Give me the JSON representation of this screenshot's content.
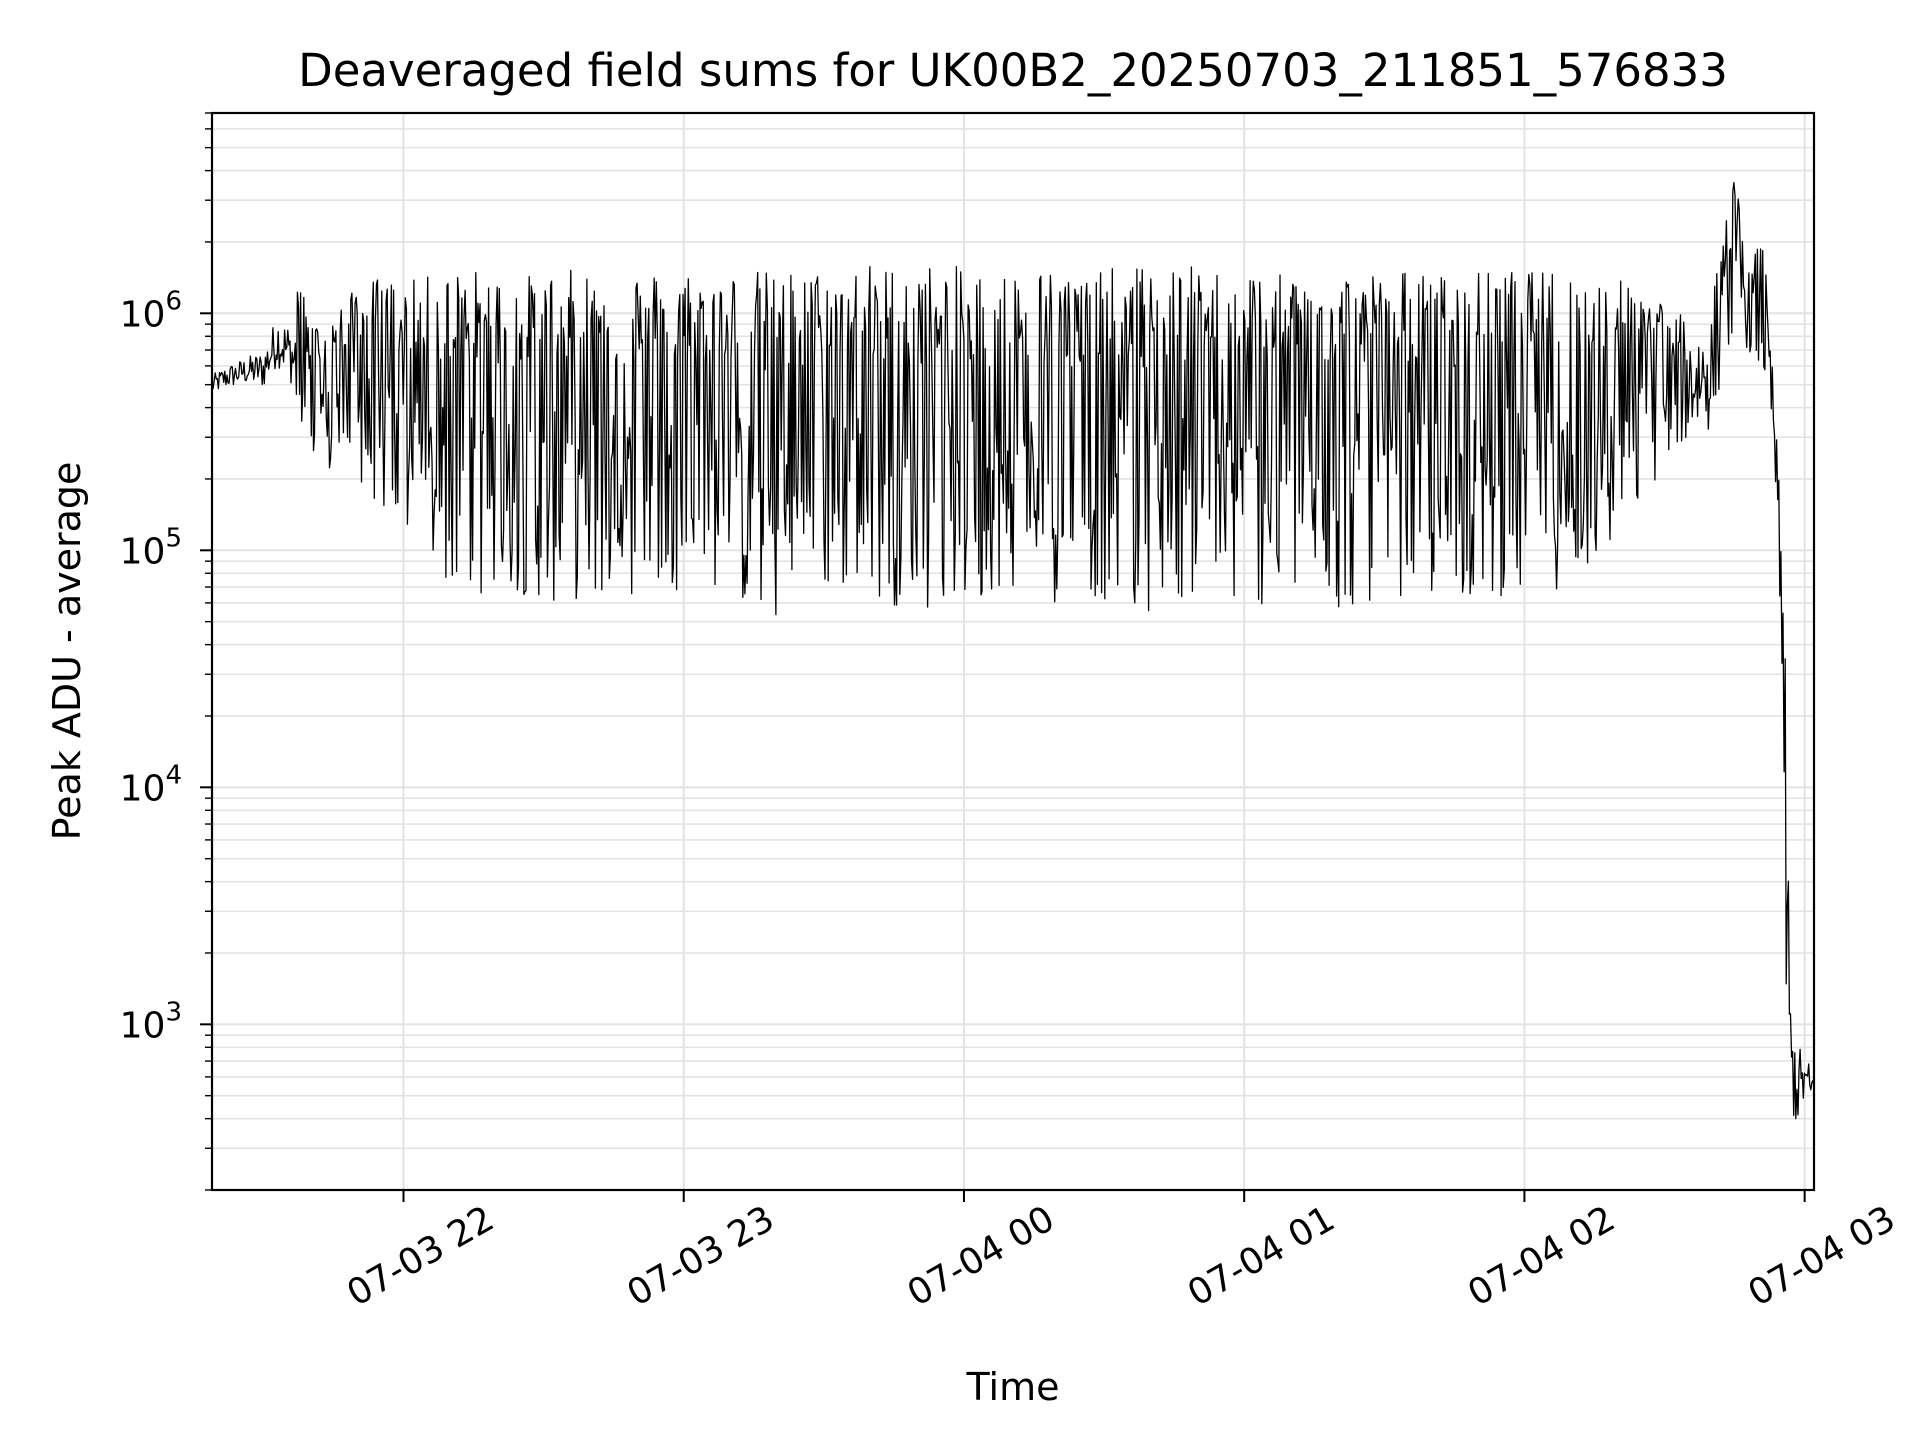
{
  "chart_data": {
    "type": "line",
    "title": "Deaveraged field sums for UK00B2_20250703_211851_576833",
    "xlabel": "Time",
    "ylabel": "Peak ADU - average",
    "yscale": "log",
    "grid": true,
    "x_ticks": [
      "2025-07-03 22:00",
      "2025-07-03 23:00",
      "2025-07-04 00:00",
      "2025-07-04 01:00",
      "2025-07-04 02:00",
      "2025-07-04 03:00"
    ],
    "x_tick_labels": [
      "07-03 22",
      "07-03 23",
      "07-04 00",
      "07-04 01",
      "07-04 02",
      "07-04 03"
    ],
    "y_ticks": [
      1000,
      10000,
      100000,
      1000000
    ],
    "y_tick_labels": [
      {
        "base": "10",
        "exp": "3"
      },
      {
        "base": "10",
        "exp": "4"
      },
      {
        "base": "10",
        "exp": "5"
      },
      {
        "base": "10",
        "exp": "6"
      }
    ],
    "xlim": [
      "2025-07-03 21:19",
      "2025-07-04 03:02"
    ],
    "ylim": [
      200,
      7000000
    ],
    "line_color": "#000000",
    "series": [
      {
        "x": [
          "2025-07-03 21:19",
          "2025-07-03 21:22",
          "2025-07-03 21:26",
          "2025-07-03 21:30",
          "2025-07-03 21:33",
          "2025-07-03 21:36",
          "2025-07-03 21:38",
          "2025-07-03 21:40",
          "2025-07-03 21:42",
          "2025-07-03 21:44",
          "2025-07-03 21:47",
          "2025-07-03 21:50",
          "2025-07-03 21:53",
          "2025-07-03 21:56",
          "2025-07-03 21:59",
          "2025-07-03 22:03",
          "2025-07-03 22:08",
          "2025-07-03 22:14",
          "2025-07-03 22:20",
          "2025-07-03 22:26",
          "2025-07-03 22:32",
          "2025-07-03 22:38",
          "2025-07-03 22:44",
          "2025-07-03 22:50",
          "2025-07-03 22:56",
          "2025-07-03 23:02",
          "2025-07-03 23:08",
          "2025-07-03 23:14",
          "2025-07-03 23:20",
          "2025-07-03 23:26",
          "2025-07-03 23:32",
          "2025-07-03 23:38",
          "2025-07-03 23:44",
          "2025-07-03 23:50",
          "2025-07-03 23:56",
          "2025-07-04 00:02",
          "2025-07-04 00:08",
          "2025-07-04 00:14",
          "2025-07-04 00:20",
          "2025-07-04 00:26",
          "2025-07-04 00:32",
          "2025-07-04 00:38",
          "2025-07-04 00:44",
          "2025-07-04 00:50",
          "2025-07-04 00:56",
          "2025-07-04 01:02",
          "2025-07-04 01:08",
          "2025-07-04 01:14",
          "2025-07-04 01:20",
          "2025-07-04 01:26",
          "2025-07-04 01:32",
          "2025-07-04 01:38",
          "2025-07-04 01:44",
          "2025-07-04 01:50",
          "2025-07-04 01:56",
          "2025-07-04 02:02",
          "2025-07-04 02:08",
          "2025-07-04 02:14",
          "2025-07-04 02:20",
          "2025-07-04 02:26",
          "2025-07-04 02:32",
          "2025-07-04 02:36",
          "2025-07-04 02:40",
          "2025-07-04 02:43",
          "2025-07-04 02:45",
          "2025-07-04 02:48",
          "2025-07-04 02:51",
          "2025-07-04 02:53",
          "2025-07-04 02:54",
          "2025-07-04 02:55",
          "2025-07-04 02:56",
          "2025-07-04 02:57",
          "2025-07-04 02:58",
          "2025-07-04 02:59",
          "2025-07-04 03:00",
          "2025-07-04 03:01",
          "2025-07-04 03:02"
        ],
        "high": [
          550000,
          600000,
          650000,
          700000,
          1000000,
          900000,
          1500000,
          950000,
          900000,
          1000000,
          1100000,
          1300000,
          1400000,
          1450000,
          1350000,
          1400000,
          1500000,
          1550000,
          1500000,
          1450000,
          1500000,
          1550000,
          1500000,
          1550000,
          1500000,
          1550000,
          1500000,
          1550000,
          1500000,
          1550000,
          1500000,
          1650000,
          1600000,
          1650000,
          1600000,
          1550000,
          1500000,
          1600000,
          1550000,
          1500000,
          1550000,
          1600000,
          1550000,
          1600000,
          1500000,
          1550000,
          1450000,
          1500000,
          1550000,
          1500000,
          1550000,
          1500000,
          1450000,
          1500000,
          1550000,
          1500000,
          1550000,
          1450000,
          1400000,
          1300000,
          1050000,
          900000,
          1000000,
          3500000,
          4200000,
          1500000,
          2300000,
          650000,
          300000,
          130000,
          30000,
          1200,
          900,
          800,
          750,
          700,
          650
        ],
        "low": [
          450000,
          480000,
          500000,
          480000,
          600000,
          500000,
          200000,
          300000,
          150000,
          180000,
          200000,
          180000,
          150000,
          120000,
          100000,
          90000,
          60000,
          55000,
          50000,
          55000,
          50000,
          52000,
          52000,
          55000,
          60000,
          55000,
          60000,
          45000,
          40000,
          55000,
          55000,
          60000,
          50000,
          45000,
          50000,
          45000,
          60000,
          55000,
          50000,
          55000,
          50000,
          45000,
          50000,
          55000,
          50000,
          48000,
          50000,
          55000,
          45000,
          50000,
          55000,
          50000,
          55000,
          50000,
          55000,
          50000,
          60000,
          70000,
          90000,
          150000,
          250000,
          300000,
          320000,
          600000,
          800000,
          700000,
          500000,
          300000,
          130000,
          30000,
          1000,
          500,
          350,
          400,
          450,
          400,
          450
        ]
      }
    ]
  }
}
